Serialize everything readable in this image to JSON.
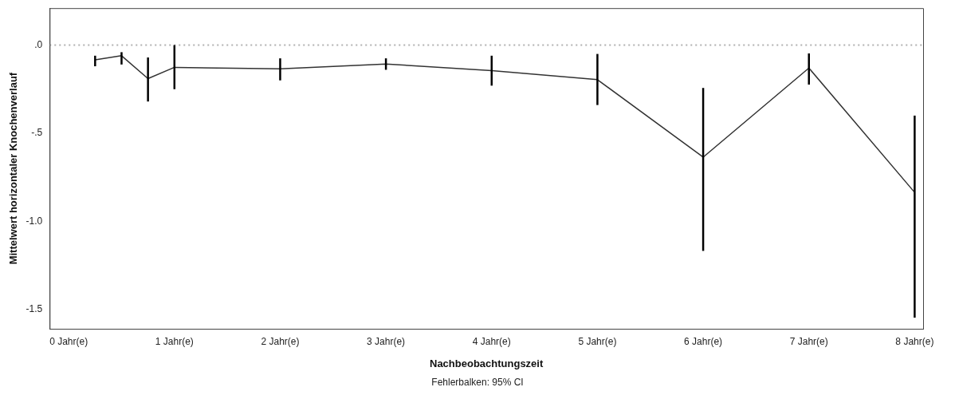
{
  "chart_data": {
    "type": "line",
    "xlabel": "Nachbeobachtungszeit",
    "ylabel": "Mittelwert horizontaler Knochenverlauf",
    "x": [
      0.25,
      0.5,
      0.75,
      1,
      2,
      3,
      4,
      5,
      6,
      7,
      8
    ],
    "series": [
      {
        "color": "#333333",
        "values": [
          -0.084,
          -0.06,
          -0.19,
          -0.126,
          -0.135,
          -0.107,
          -0.145,
          -0.196,
          -0.636,
          -0.13,
          -0.836
        ],
        "errors": [
          [
            -0.12,
            -0.06
          ],
          [
            -0.11,
            -0.04
          ],
          [
            -0.32,
            -0.07
          ],
          [
            -0.25,
            0.0
          ],
          [
            -0.2,
            -0.075
          ],
          [
            -0.14,
            -0.075
          ],
          [
            -0.23,
            -0.06
          ],
          [
            -0.34,
            -0.05
          ],
          [
            -1.168,
            -0.243
          ],
          [
            -0.224,
            -0.047
          ],
          [
            -1.547,
            -0.4
          ]
        ]
      }
    ],
    "xlim": [
      -0.18,
      8.08
    ],
    "xticks": [
      {
        "value": 0,
        "label": "0 Jahr(e)"
      },
      {
        "value": 1,
        "label": "1 Jahr(e)"
      },
      {
        "value": 2,
        "label": "2 Jahr(e)"
      },
      {
        "value": 3,
        "label": "3 Jahr(e)"
      },
      {
        "value": 4,
        "label": "4 Jahr(e)"
      },
      {
        "value": 5,
        "label": "5 Jahr(e)"
      },
      {
        "value": 6,
        "label": "6 Jahr(e)"
      },
      {
        "value": 7,
        "label": "7 Jahr(e)"
      },
      {
        "value": 8,
        "label": "8 Jahr(e)"
      }
    ],
    "ylim": [
      -1.61,
      0.21
    ],
    "yticks": [
      {
        "value": 0,
        "label": ".0"
      },
      {
        "value": -0.5,
        "label": "-.5"
      },
      {
        "value": -1,
        "label": "-1.0"
      },
      {
        "value": -1.5,
        "label": "-1.5"
      }
    ],
    "ref_lines": [
      {
        "axis": "y",
        "value": 0,
        "color": "#b0b0b0",
        "line_style": "dotted"
      }
    ],
    "grid": false,
    "legend": false,
    "marker": "none",
    "line_style": "solid",
    "annotations": [
      "Fehlerbalken: 95% CI"
    ]
  }
}
